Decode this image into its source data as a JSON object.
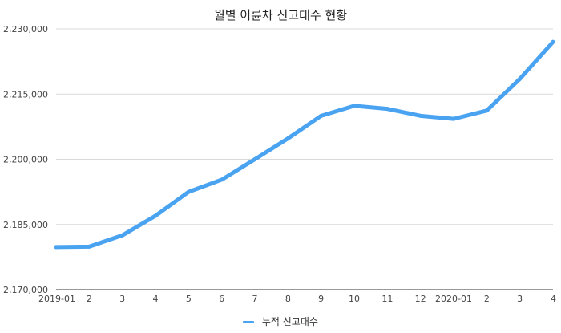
{
  "chart_data": {
    "type": "line",
    "title": "월별 이륜차 신고대수 현황",
    "categories": [
      "2019-01",
      "2",
      "3",
      "4",
      "5",
      "6",
      "7",
      "8",
      "9",
      "10",
      "11",
      "12",
      "2020-01",
      "2",
      "3",
      "4"
    ],
    "series": [
      {
        "name": "누적 신고대수",
        "color": "#4aa3f0",
        "values": [
          2179800,
          2179900,
          2182500,
          2187000,
          2192500,
          2195300,
          2200000,
          2204800,
          2210000,
          2212300,
          2211600,
          2210000,
          2209300,
          2211200,
          2218500,
          2227000
        ]
      }
    ],
    "yticks": [
      "2,170,000",
      "2,185,000",
      "2,200,000",
      "2,215,000",
      "2,230,000"
    ],
    "ylim": [
      2170000,
      2230000
    ],
    "xlabel": "",
    "ylabel": "",
    "grid": true,
    "legend_position": "bottom"
  }
}
